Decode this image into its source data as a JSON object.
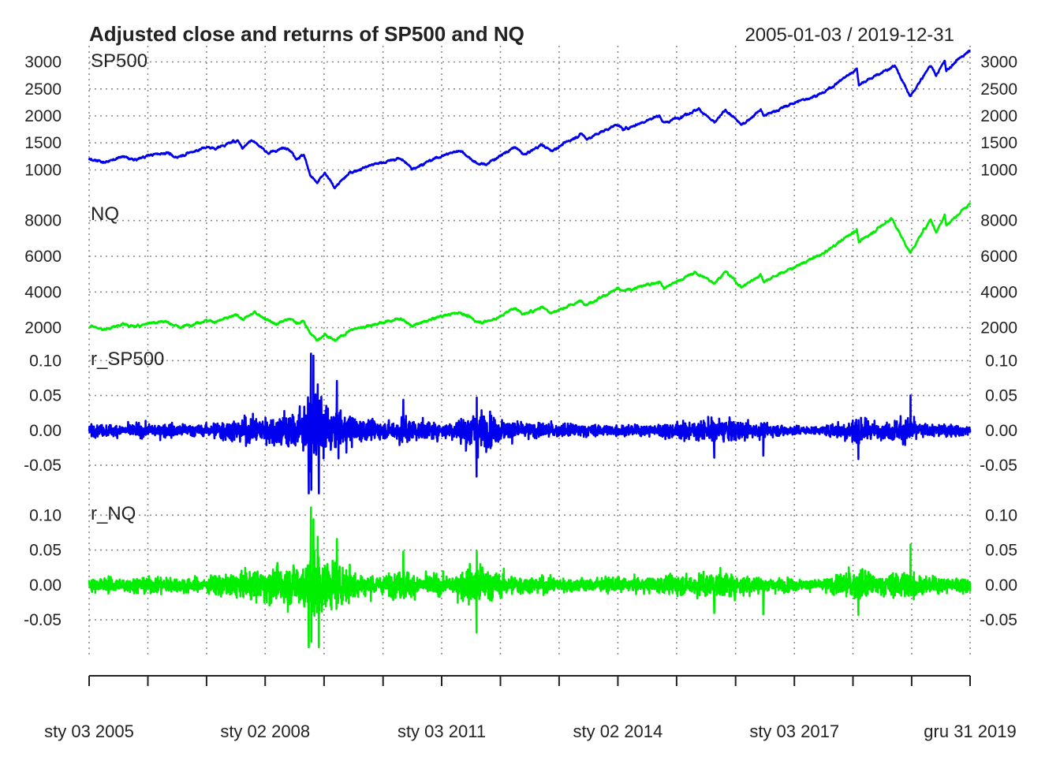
{
  "chart_data": {
    "type": "line",
    "title": "Adjusted close and returns of SP500 and NQ",
    "date_range": "2005-01-03 / 2019-12-31",
    "x_start": "2005-01-03",
    "x_end": "2019-12-31",
    "x_tick_dates": [
      "2005-01-03",
      "2006-01-03",
      "2007-01-03",
      "2008-01-02",
      "2009-01-02",
      "2010-01-04",
      "2011-01-03",
      "2012-01-03",
      "2013-01-02",
      "2014-01-02",
      "2015-01-02",
      "2016-01-04",
      "2017-01-03",
      "2018-01-02",
      "2019-01-02",
      "2019-12-31"
    ],
    "x_tick_labels": [
      "sty 03 2005",
      "sty 02 2008",
      "sty 03 2011",
      "sty 02 2014",
      "sty 03 2017",
      "gru 31 2019"
    ],
    "x_tick_label_dates": [
      "2005-01-03",
      "2008-01-02",
      "2011-01-03",
      "2014-01-02",
      "2017-01-03",
      "2019-12-31"
    ],
    "grid": true,
    "panels": [
      {
        "name": "SP500",
        "color": "#0000ee",
        "kind": "line",
        "ylim": [
          700,
          3300
        ],
        "yticks": [
          1000,
          1500,
          2000,
          2500,
          3000
        ],
        "ytick_labels": [
          "1000",
          "1500",
          "2000",
          "2500",
          "3000"
        ],
        "points": [
          [
            "2005-01-03",
            1202
          ],
          [
            "2005-04-15",
            1143
          ],
          [
            "2005-08-01",
            1245
          ],
          [
            "2005-10-15",
            1180
          ],
          [
            "2006-01-03",
            1268
          ],
          [
            "2006-05-08",
            1325
          ],
          [
            "2006-06-13",
            1223
          ],
          [
            "2006-12-29",
            1418
          ],
          [
            "2007-02-27",
            1400
          ],
          [
            "2007-07-16",
            1553
          ],
          [
            "2007-08-15",
            1406
          ],
          [
            "2007-10-09",
            1565
          ],
          [
            "2008-01-22",
            1310
          ],
          [
            "2008-05-19",
            1426
          ],
          [
            "2008-07-15",
            1214
          ],
          [
            "2008-08-29",
            1283
          ],
          [
            "2008-10-10",
            899
          ],
          [
            "2008-11-20",
            752
          ],
          [
            "2009-01-06",
            935
          ],
          [
            "2009-03-09",
            677
          ],
          [
            "2009-06-12",
            946
          ],
          [
            "2009-10-16",
            1087
          ],
          [
            "2010-01-19",
            1150
          ],
          [
            "2010-04-23",
            1217
          ],
          [
            "2010-07-02",
            1022
          ],
          [
            "2010-12-31",
            1258
          ],
          [
            "2011-04-29",
            1364
          ],
          [
            "2011-08-08",
            1120
          ],
          [
            "2011-10-03",
            1099
          ],
          [
            "2011-12-30",
            1258
          ],
          [
            "2012-04-02",
            1419
          ],
          [
            "2012-06-01",
            1278
          ],
          [
            "2012-09-14",
            1466
          ],
          [
            "2012-11-15",
            1353
          ],
          [
            "2013-05-21",
            1669
          ],
          [
            "2013-06-24",
            1573
          ],
          [
            "2013-12-31",
            1848
          ],
          [
            "2014-02-03",
            1742
          ],
          [
            "2014-09-18",
            2011
          ],
          [
            "2014-10-15",
            1862
          ],
          [
            "2015-05-21",
            2131
          ],
          [
            "2015-08-25",
            1867
          ],
          [
            "2015-11-03",
            2109
          ],
          [
            "2016-02-11",
            1829
          ],
          [
            "2016-06-08",
            2119
          ],
          [
            "2016-06-27",
            2000
          ],
          [
            "2016-12-30",
            2239
          ],
          [
            "2017-06-30",
            2423
          ],
          [
            "2018-01-26",
            2873
          ],
          [
            "2018-02-08",
            2581
          ],
          [
            "2018-09-20",
            2931
          ],
          [
            "2018-12-24",
            2351
          ],
          [
            "2019-04-30",
            2946
          ],
          [
            "2019-06-03",
            2744
          ],
          [
            "2019-07-26",
            3025
          ],
          [
            "2019-08-05",
            2844
          ],
          [
            "2019-12-31",
            3231
          ]
        ]
      },
      {
        "name": "NQ",
        "color": "#00ee00",
        "kind": "line",
        "ylim": [
          1100,
          9400
        ],
        "yticks": [
          2000,
          4000,
          6000,
          8000
        ],
        "ytick_labels": [
          "2000",
          "4000",
          "6000",
          "8000"
        ],
        "points": [
          [
            "2005-01-03",
            2090
          ],
          [
            "2005-04-20",
            1904
          ],
          [
            "2005-08-01",
            2219
          ],
          [
            "2005-10-15",
            2050
          ],
          [
            "2006-01-03",
            2270
          ],
          [
            "2006-04-20",
            2370
          ],
          [
            "2006-07-18",
            2020
          ],
          [
            "2006-12-29",
            2415
          ],
          [
            "2007-03-05",
            2340
          ],
          [
            "2007-07-17",
            2720
          ],
          [
            "2007-08-15",
            2450
          ],
          [
            "2007-10-31",
            2860
          ],
          [
            "2008-03-10",
            2180
          ],
          [
            "2008-06-05",
            2550
          ],
          [
            "2008-07-15",
            2220
          ],
          [
            "2008-08-29",
            2370
          ],
          [
            "2008-10-10",
            1650
          ],
          [
            "2008-11-20",
            1316
          ],
          [
            "2009-01-06",
            1650
          ],
          [
            "2009-03-09",
            1268
          ],
          [
            "2009-06-12",
            1860
          ],
          [
            "2009-10-16",
            2150
          ],
          [
            "2010-01-19",
            2320
          ],
          [
            "2010-04-23",
            2530
          ],
          [
            "2010-07-02",
            2091
          ],
          [
            "2010-12-31",
            2652
          ],
          [
            "2011-04-29",
            2873
          ],
          [
            "2011-08-08",
            2357
          ],
          [
            "2011-10-03",
            2335
          ],
          [
            "2011-12-30",
            2605
          ],
          [
            "2012-03-26",
            3122
          ],
          [
            "2012-06-01",
            2747
          ],
          [
            "2012-09-19",
            3182
          ],
          [
            "2012-11-15",
            2836
          ],
          [
            "2013-05-21",
            3502
          ],
          [
            "2013-06-24",
            3320
          ],
          [
            "2013-12-31",
            4176
          ],
          [
            "2014-02-03",
            4030
          ],
          [
            "2014-09-18",
            4593
          ],
          [
            "2014-10-15",
            4215
          ],
          [
            "2015-04-24",
            5092
          ],
          [
            "2015-08-25",
            4526
          ],
          [
            "2015-11-03",
            5142
          ],
          [
            "2016-02-11",
            4266
          ],
          [
            "2016-06-08",
            4974
          ],
          [
            "2016-06-27",
            4594
          ],
          [
            "2016-12-30",
            5383
          ],
          [
            "2017-06-30",
            6140
          ],
          [
            "2018-01-26",
            7505
          ],
          [
            "2018-02-08",
            6777
          ],
          [
            "2018-08-29",
            8133
          ],
          [
            "2018-12-24",
            6193
          ],
          [
            "2019-04-30",
            8095
          ],
          [
            "2019-06-03",
            7333
          ],
          [
            "2019-07-26",
            8330
          ],
          [
            "2019-08-05",
            7726
          ],
          [
            "2019-12-31",
            8972
          ]
        ]
      },
      {
        "name": "r_SP500",
        "color": "#0000ee",
        "kind": "returns",
        "ylim": [
          -0.095,
          0.115
        ],
        "yticks": [
          -0.05,
          0.0,
          0.05,
          0.1
        ],
        "ytick_labels": [
          "-0.05",
          "0.00",
          "0.05",
          "0.10"
        ],
        "volatility": [
          [
            "2005-01-03",
            0.0065
          ],
          [
            "2006-06-01",
            0.008
          ],
          [
            "2006-12-31",
            0.006
          ],
          [
            "2007-02-27",
            0.011
          ],
          [
            "2007-08-15",
            0.014
          ],
          [
            "2008-01-22",
            0.017
          ],
          [
            "2008-09-15",
            0.028
          ],
          [
            "2008-10-20",
            0.042
          ],
          [
            "2008-12-01",
            0.034
          ],
          [
            "2009-03-15",
            0.026
          ],
          [
            "2009-08-01",
            0.014
          ],
          [
            "2010-01-01",
            0.009
          ],
          [
            "2010-05-15",
            0.016
          ],
          [
            "2010-08-15",
            0.011
          ],
          [
            "2011-03-01",
            0.009
          ],
          [
            "2011-08-10",
            0.026
          ],
          [
            "2011-12-15",
            0.014
          ],
          [
            "2012-06-01",
            0.009
          ],
          [
            "2013-06-01",
            0.007
          ],
          [
            "2014-06-01",
            0.006
          ],
          [
            "2015-08-25",
            0.013
          ],
          [
            "2016-02-15",
            0.011
          ],
          [
            "2016-07-01",
            0.008
          ],
          [
            "2017-06-01",
            0.004
          ],
          [
            "2018-02-08",
            0.017
          ],
          [
            "2018-06-01",
            0.008
          ],
          [
            "2018-12-24",
            0.016
          ],
          [
            "2019-03-01",
            0.008
          ],
          [
            "2019-12-31",
            0.006
          ]
        ],
        "spikes": [
          [
            "2008-09-29",
            -0.09
          ],
          [
            "2008-10-13",
            0.11
          ],
          [
            "2008-10-28",
            0.107
          ],
          [
            "2008-12-01",
            -0.09
          ],
          [
            "2008-10-15",
            -0.085
          ],
          [
            "2008-11-24",
            0.066
          ],
          [
            "2009-03-23",
            0.071
          ],
          [
            "2010-05-10",
            0.044
          ],
          [
            "2011-08-08",
            -0.066
          ],
          [
            "2011-08-09",
            0.047
          ],
          [
            "2015-08-24",
            -0.039
          ],
          [
            "2016-06-24",
            -0.036
          ],
          [
            "2018-02-05",
            -0.041
          ],
          [
            "2018-12-26",
            0.05
          ]
        ]
      },
      {
        "name": "r_NQ",
        "color": "#00ee00",
        "kind": "returns",
        "ylim": [
          -0.095,
          0.115
        ],
        "yticks": [
          -0.05,
          0.0,
          0.05,
          0.1
        ],
        "ytick_labels": [
          "-0.05",
          "0.00",
          "0.05",
          "0.10"
        ],
        "volatility": [
          [
            "2005-01-03",
            0.008
          ],
          [
            "2006-06-01",
            0.0095
          ],
          [
            "2006-12-31",
            0.0075
          ],
          [
            "2007-02-27",
            0.012
          ],
          [
            "2007-08-15",
            0.015
          ],
          [
            "2008-01-22",
            0.019
          ],
          [
            "2008-09-15",
            0.028
          ],
          [
            "2008-10-20",
            0.04
          ],
          [
            "2008-12-01",
            0.033
          ],
          [
            "2009-03-15",
            0.026
          ],
          [
            "2009-08-01",
            0.015
          ],
          [
            "2010-01-01",
            0.01
          ],
          [
            "2010-05-15",
            0.017
          ],
          [
            "2010-08-15",
            0.012
          ],
          [
            "2011-03-01",
            0.01
          ],
          [
            "2011-08-10",
            0.026
          ],
          [
            "2011-12-15",
            0.014
          ],
          [
            "2012-06-01",
            0.01
          ],
          [
            "2013-06-01",
            0.008
          ],
          [
            "2014-06-01",
            0.008
          ],
          [
            "2015-08-25",
            0.015
          ],
          [
            "2016-02-15",
            0.013
          ],
          [
            "2016-07-01",
            0.009
          ],
          [
            "2017-06-01",
            0.0055
          ],
          [
            "2018-02-08",
            0.019
          ],
          [
            "2018-06-01",
            0.01
          ],
          [
            "2018-12-24",
            0.019
          ],
          [
            "2019-03-01",
            0.01
          ],
          [
            "2019-12-31",
            0.008
          ]
        ],
        "spikes": [
          [
            "2008-09-29",
            -0.089
          ],
          [
            "2008-10-13",
            0.111
          ],
          [
            "2008-10-28",
            0.094
          ],
          [
            "2008-12-01",
            -0.089
          ],
          [
            "2008-10-15",
            -0.081
          ],
          [
            "2008-11-24",
            0.069
          ],
          [
            "2009-03-23",
            0.066
          ],
          [
            "2010-05-10",
            0.048
          ],
          [
            "2011-08-08",
            -0.068
          ],
          [
            "2011-08-09",
            0.049
          ],
          [
            "2015-08-24",
            -0.04
          ],
          [
            "2016-06-24",
            -0.042
          ],
          [
            "2018-02-05",
            -0.043
          ],
          [
            "2018-12-26",
            0.058
          ]
        ]
      }
    ]
  }
}
